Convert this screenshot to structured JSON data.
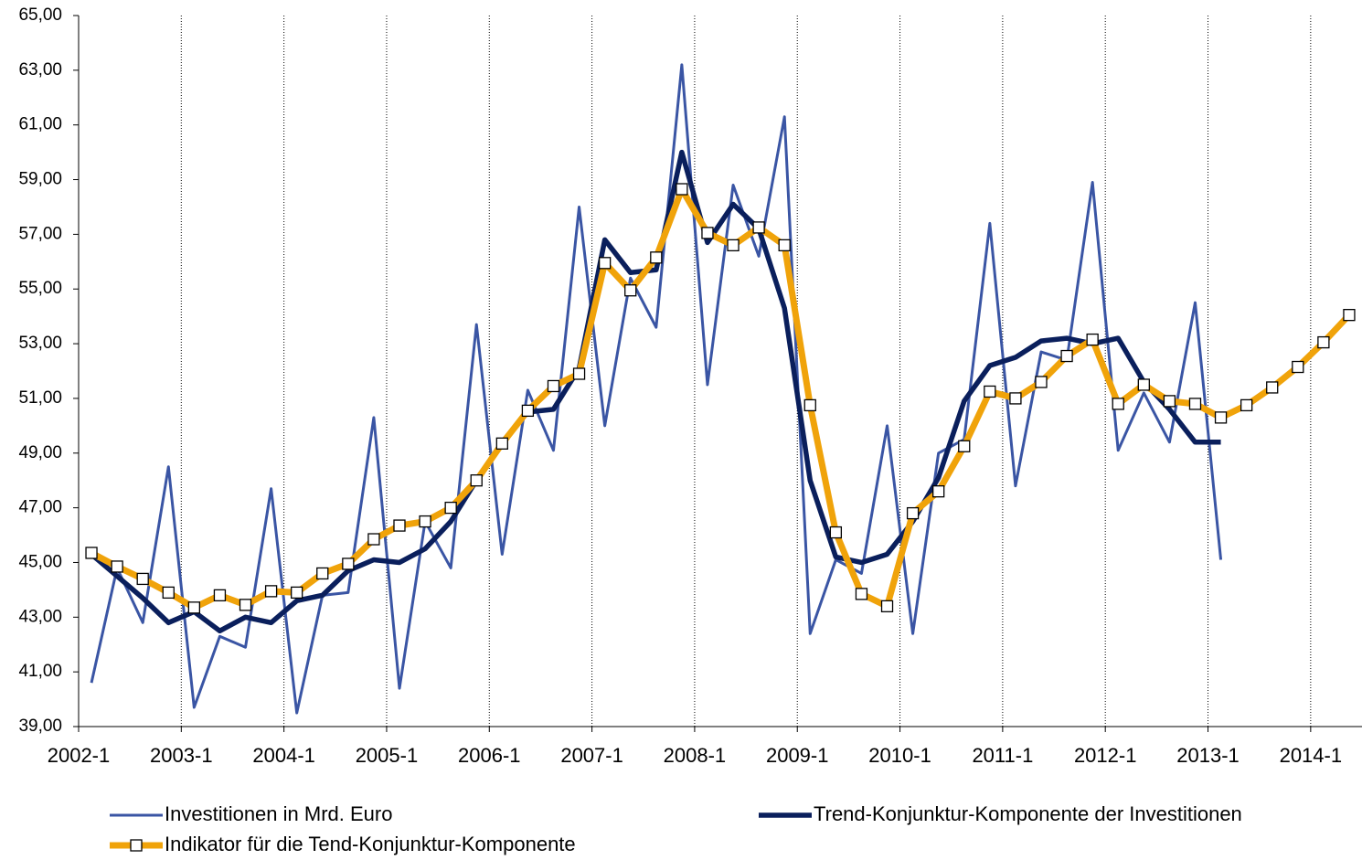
{
  "chart_data": {
    "type": "line",
    "categories": [
      "2002-1",
      null,
      null,
      null,
      "2003-1",
      null,
      null,
      null,
      "2004-1",
      null,
      null,
      null,
      "2005-1",
      null,
      null,
      null,
      "2006-1",
      null,
      null,
      null,
      "2007-1",
      null,
      null,
      null,
      "2008-1",
      null,
      null,
      null,
      "2009-1",
      null,
      null,
      null,
      "2010-1",
      null,
      null,
      null,
      "2011-1",
      null,
      null,
      null,
      "2012-1",
      null,
      null,
      null,
      "2013-1",
      null,
      null,
      null,
      "2014-1",
      null
    ],
    "series": [
      {
        "name": "Investitionen in Mrd. Euro",
        "color": "#3a55a4",
        "values": [
          40.6,
          44.8,
          42.8,
          48.5,
          39.7,
          42.3,
          41.9,
          47.7,
          39.5,
          43.8,
          43.9,
          50.3,
          40.4,
          46.5,
          44.8,
          53.7,
          45.3,
          51.3,
          49.1,
          58.0,
          50.0,
          55.4,
          53.6,
          63.2,
          51.5,
          58.8,
          56.2,
          61.3,
          42.4,
          45.1,
          44.6,
          50.0,
          42.4,
          49.0,
          49.5,
          57.4,
          47.8,
          52.7,
          52.4,
          58.9,
          49.1,
          51.2,
          49.4,
          54.5,
          45.1,
          null,
          null,
          null,
          null,
          null
        ]
      },
      {
        "name": "Trend-Konjunktur-Komponente der Investitionen",
        "color": "#0a1f5c",
        "values": [
          45.3,
          44.5,
          43.7,
          42.8,
          43.2,
          42.5,
          43.0,
          42.8,
          43.6,
          43.8,
          44.7,
          45.1,
          45.0,
          45.5,
          46.5,
          48.0,
          49.4,
          50.5,
          50.6,
          52.1,
          56.8,
          55.6,
          55.7,
          60.0,
          56.7,
          58.1,
          57.2,
          54.3,
          48.0,
          45.2,
          45.0,
          45.3,
          46.5,
          48.1,
          50.9,
          52.2,
          52.5,
          53.1,
          53.2,
          53.0,
          53.2,
          51.6,
          50.6,
          49.4,
          49.4,
          null,
          null,
          null,
          null,
          null
        ]
      },
      {
        "name": "Indikator für die Tend-Konjunktur-Komponente",
        "color": "#f0a30a",
        "marker": "square",
        "values": [
          45.35,
          44.85,
          44.4,
          43.9,
          43.35,
          43.8,
          43.45,
          43.95,
          43.9,
          44.6,
          44.95,
          45.85,
          46.35,
          46.5,
          47.0,
          48.0,
          49.35,
          50.55,
          51.45,
          51.9,
          55.95,
          54.95,
          56.15,
          58.65,
          57.05,
          56.6,
          57.25,
          56.6,
          50.75,
          46.1,
          43.85,
          43.4,
          46.8,
          47.6,
          49.25,
          51.25,
          51.0,
          51.6,
          52.55,
          53.15,
          50.8,
          51.5,
          50.9,
          50.8,
          50.3,
          50.75,
          51.4,
          52.15,
          53.05,
          54.05
        ]
      }
    ],
    "ylim": [
      39,
      65
    ],
    "yticks": [
      {
        "value": 39,
        "label": "39,00"
      },
      {
        "value": 41,
        "label": "41,00"
      },
      {
        "value": 43,
        "label": "43,00"
      },
      {
        "value": 45,
        "label": "45,00"
      },
      {
        "value": 47,
        "label": "47,00"
      },
      {
        "value": 49,
        "label": "49,00"
      },
      {
        "value": 51,
        "label": "51,00"
      },
      {
        "value": 53,
        "label": "53,00"
      },
      {
        "value": 55,
        "label": "55,00"
      },
      {
        "value": 57,
        "label": "57,00"
      },
      {
        "value": 59,
        "label": "59,00"
      },
      {
        "value": 61,
        "label": "61,00"
      },
      {
        "value": 63,
        "label": "63,00"
      },
      {
        "value": 65,
        "label": "65,00"
      }
    ],
    "grid": true,
    "legend": "bottom"
  }
}
